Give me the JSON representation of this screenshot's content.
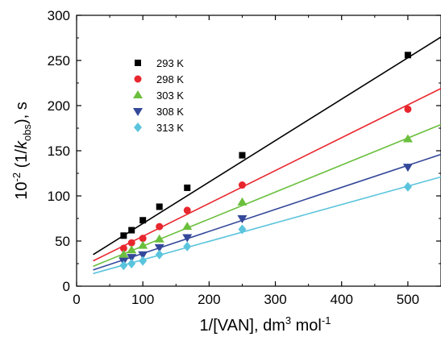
{
  "chart_data": {
    "type": "scatter",
    "title": "",
    "xlabel": {
      "prefix": "1/[VAN], dm",
      "sup1": "3",
      "middle": " mol",
      "sup2": "-1"
    },
    "ylabel": {
      "prefix": "10",
      "sup": "-2",
      "middle": " (1/",
      "k": "k",
      "sub": "obs",
      "suffix": "), s"
    },
    "xlim": [
      0,
      550
    ],
    "ylim": [
      0,
      300
    ],
    "xticks": [
      0,
      100,
      200,
      300,
      400,
      500
    ],
    "yticks": [
      0,
      50,
      100,
      150,
      200,
      250,
      300
    ],
    "xtick_labels": [
      "0",
      "100",
      "200",
      "300",
      "400",
      "500"
    ],
    "ytick_labels": [
      "0",
      "50",
      "100",
      "150",
      "200",
      "250",
      "300"
    ],
    "grid": false,
    "legend_position": "top-left",
    "series": [
      {
        "name": "293 K",
        "color": "#000000",
        "marker": "square",
        "x": [
          71,
          83,
          100,
          125,
          167,
          250,
          500
        ],
        "y": [
          56,
          62,
          73,
          88,
          109,
          145,
          256
        ],
        "fit": {
          "x": [
            25,
            550
          ],
          "y": [
            35,
            276
          ]
        }
      },
      {
        "name": "298 K",
        "color": "#e8262d",
        "marker": "circle",
        "x": [
          71,
          83,
          100,
          125,
          167,
          250,
          500
        ],
        "y": [
          42,
          48,
          53,
          66,
          84,
          112,
          196
        ],
        "fit": {
          "x": [
            25,
            550
          ],
          "y": [
            28,
            219
          ]
        }
      },
      {
        "name": "303 K",
        "color": "#6abf3c",
        "marker": "triangle-up",
        "x": [
          71,
          83,
          100,
          125,
          167,
          250,
          500
        ],
        "y": [
          35,
          40,
          45,
          52,
          66,
          93,
          163
        ],
        "fit": {
          "x": [
            25,
            550
          ],
          "y": [
            22,
            179
          ]
        }
      },
      {
        "name": "308 K",
        "color": "#34489a",
        "marker": "triangle-down",
        "x": [
          71,
          83,
          100,
          125,
          167,
          250,
          500
        ],
        "y": [
          28,
          32,
          35,
          43,
          54,
          75,
          132
        ],
        "fit": {
          "x": [
            25,
            550
          ],
          "y": [
            18,
            146
          ]
        }
      },
      {
        "name": "313 K",
        "color": "#5bc4dd",
        "marker": "diamond",
        "x": [
          71,
          83,
          100,
          125,
          167,
          250,
          500
        ],
        "y": [
          23,
          25,
          28,
          35,
          44,
          63,
          110
        ],
        "fit": {
          "x": [
            25,
            550
          ],
          "y": [
            14,
            121
          ]
        }
      }
    ]
  }
}
